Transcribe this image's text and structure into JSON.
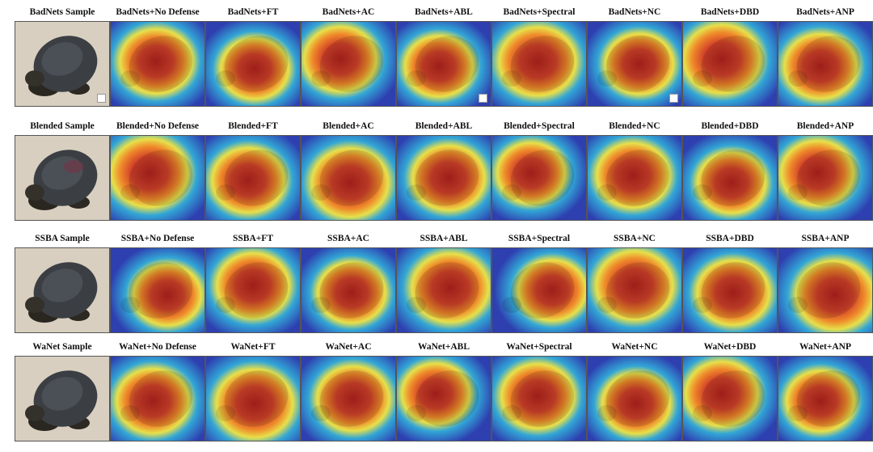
{
  "figure": {
    "rows": [
      {
        "attack": "BadNets",
        "sample_title": "BadNets Sample",
        "titles": [
          "BadNets+No Defense",
          "BadNets+FT",
          "BadNets+AC",
          "BadNets+ABL",
          "BadNets+Spectral",
          "BadNets+NC",
          "BadNets+DBD",
          "BadNets+ANP"
        ]
      },
      {
        "attack": "Blended",
        "sample_title": "Blended Sample",
        "titles": [
          "Blended+No Defense",
          "Blended+FT",
          "Blended+AC",
          "Blended+ABL",
          "Blended+Spectral",
          "Blended+NC",
          "Blended+DBD",
          "Blended+ANP"
        ]
      },
      {
        "attack": "SSBA",
        "sample_title": "SSBA Sample",
        "titles": [
          "SSBA+No Defense",
          "SSBA+FT",
          "SSBA+AC",
          "SSBA+ABL",
          "SSBA+Spectral",
          "SSBA+NC",
          "SSBA+DBD",
          "SSBA+ANP"
        ]
      },
      {
        "attack": "WaNet",
        "sample_title": "WaNet Sample",
        "titles": [
          "WaNet+No Defense",
          "WaNet+FT",
          "WaNet+AC",
          "WaNet+ABL",
          "WaNet+Spectral",
          "WaNet+NC",
          "WaNet+DBD",
          "WaNet+ANP"
        ]
      }
    ],
    "colors": {
      "sample_bg": "#d8cfc0",
      "turtle_shell": "#3b3f44",
      "heat_low": "#2e3fb0",
      "heat_mid1": "#32a6d6",
      "heat_mid2": "#e7e04a",
      "heat_high": "#b3231e",
      "panel_border": "#555555"
    }
  }
}
